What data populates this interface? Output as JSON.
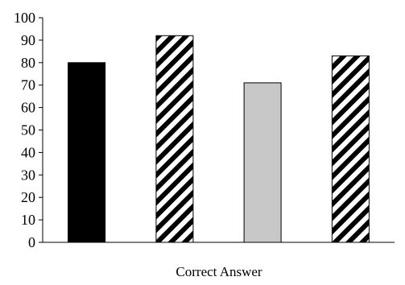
{
  "chart_data": {
    "type": "bar",
    "title": "",
    "xlabel": "Correct Answer",
    "ylabel": "",
    "ylim": [
      0,
      100
    ],
    "yticks": [
      0,
      10,
      20,
      30,
      40,
      50,
      60,
      70,
      80,
      90,
      100
    ],
    "grid": false,
    "legend": "none",
    "values": [
      80,
      92,
      71,
      83
    ],
    "bar_fills": [
      "solid-black",
      "diagonal-stripes",
      "solid-light-gray",
      "diagonal-stripes"
    ],
    "colors": {
      "black": "#000000",
      "gray": "#c8c8c8",
      "stripe": "#000000",
      "background": "#ffffff"
    }
  }
}
